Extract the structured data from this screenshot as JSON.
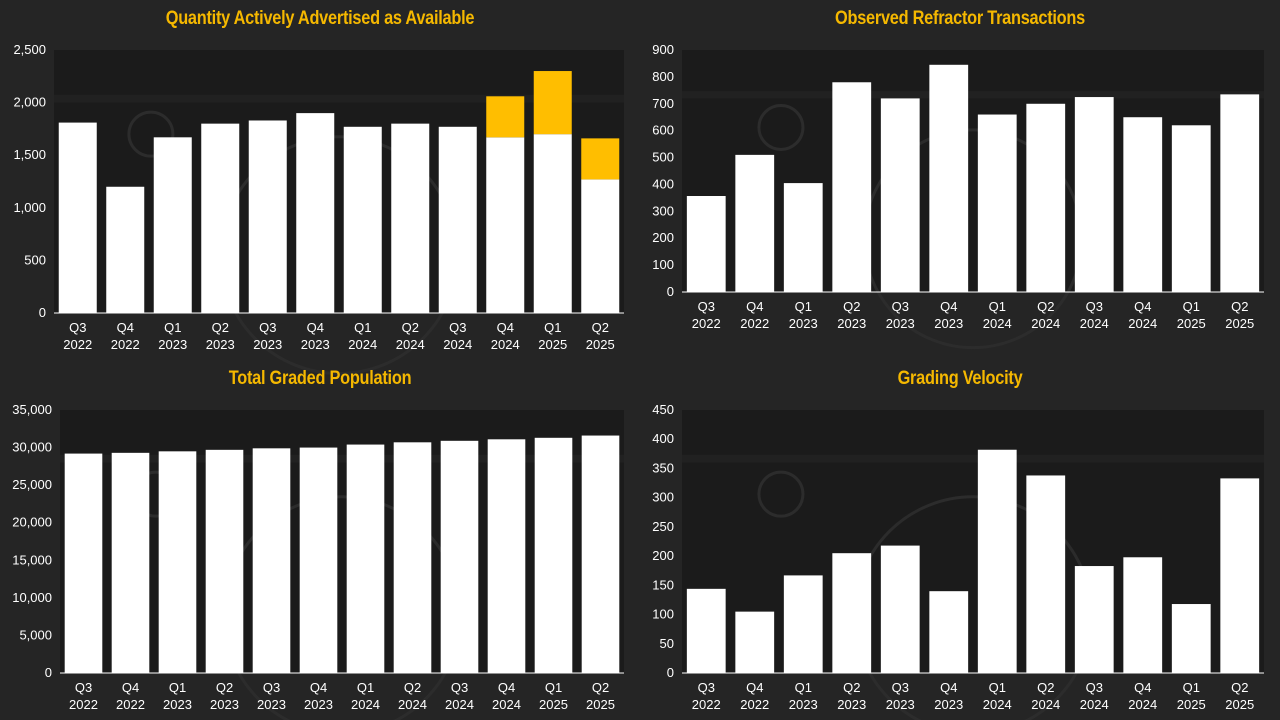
{
  "chart_data": [
    {
      "type": "bar",
      "stacked": true,
      "title": "Quantity Actively Advertised as Available",
      "categories": [
        [
          "Q3",
          "2022"
        ],
        [
          "Q4",
          "2022"
        ],
        [
          "Q1",
          "2023"
        ],
        [
          "Q2",
          "2023"
        ],
        [
          "Q3",
          "2023"
        ],
        [
          "Q4",
          "2023"
        ],
        [
          "Q1",
          "2024"
        ],
        [
          "Q2",
          "2024"
        ],
        [
          "Q3",
          "2024"
        ],
        [
          "Q4",
          "2024"
        ],
        [
          "Q1",
          "2025"
        ],
        [
          "Q2",
          "2025"
        ]
      ],
      "series": [
        {
          "color": "#ffffff",
          "values": [
            1810,
            1200,
            1670,
            1800,
            1830,
            1900,
            1770,
            1800,
            1770,
            1670,
            1700,
            1270
          ]
        },
        {
          "color": "#ffbe00",
          "values": [
            0,
            0,
            0,
            0,
            0,
            0,
            0,
            0,
            0,
            390,
            600,
            390
          ]
        }
      ],
      "ylim": [
        0,
        2500
      ],
      "yticks": [
        "0",
        "500",
        "1,000",
        "1,500",
        "2,000",
        "2,500"
      ],
      "ytick_values": [
        0,
        500,
        1000,
        1500,
        2000,
        2500
      ],
      "grid": false
    },
    {
      "type": "bar",
      "title": "Observed Refractor Transactions",
      "categories": [
        [
          "Q3",
          "2022"
        ],
        [
          "Q4",
          "2022"
        ],
        [
          "Q1",
          "2023"
        ],
        [
          "Q2",
          "2023"
        ],
        [
          "Q3",
          "2023"
        ],
        [
          "Q4",
          "2023"
        ],
        [
          "Q1",
          "2024"
        ],
        [
          "Q2",
          "2024"
        ],
        [
          "Q3",
          "2024"
        ],
        [
          "Q4",
          "2024"
        ],
        [
          "Q1",
          "2025"
        ],
        [
          "Q2",
          "2025"
        ]
      ],
      "series": [
        {
          "color": "#ffffff",
          "values": [
            357,
            510,
            405,
            780,
            720,
            845,
            660,
            700,
            725,
            650,
            620,
            735
          ]
        }
      ],
      "ylim": [
        0,
        900
      ],
      "yticks": [
        "0",
        "100",
        "200",
        "300",
        "400",
        "500",
        "600",
        "700",
        "800",
        "900"
      ],
      "ytick_values": [
        0,
        100,
        200,
        300,
        400,
        500,
        600,
        700,
        800,
        900
      ],
      "grid": false
    },
    {
      "type": "bar",
      "title": "Total Graded Population",
      "categories": [
        [
          "Q3",
          "2022"
        ],
        [
          "Q4",
          "2022"
        ],
        [
          "Q1",
          "2023"
        ],
        [
          "Q2",
          "2023"
        ],
        [
          "Q3",
          "2023"
        ],
        [
          "Q4",
          "2023"
        ],
        [
          "Q1",
          "2024"
        ],
        [
          "Q2",
          "2024"
        ],
        [
          "Q3",
          "2024"
        ],
        [
          "Q4",
          "2024"
        ],
        [
          "Q1",
          "2025"
        ],
        [
          "Q2",
          "2025"
        ]
      ],
      "series": [
        {
          "color": "#ffffff",
          "values": [
            29200,
            29300,
            29500,
            29700,
            29900,
            30000,
            30400,
            30700,
            30900,
            31100,
            31300,
            31600
          ]
        }
      ],
      "ylim": [
        0,
        35000
      ],
      "yticks": [
        "0",
        "5,000",
        "10,000",
        "15,000",
        "20,000",
        "25,000",
        "30,000",
        "35,000"
      ],
      "ytick_values": [
        0,
        5000,
        10000,
        15000,
        20000,
        25000,
        30000,
        35000
      ],
      "grid": false
    },
    {
      "type": "bar",
      "title": "Grading Velocity",
      "categories": [
        [
          "Q3",
          "2022"
        ],
        [
          "Q4",
          "2022"
        ],
        [
          "Q1",
          "2023"
        ],
        [
          "Q2",
          "2023"
        ],
        [
          "Q3",
          "2023"
        ],
        [
          "Q4",
          "2023"
        ],
        [
          "Q1",
          "2024"
        ],
        [
          "Q2",
          "2024"
        ],
        [
          "Q3",
          "2024"
        ],
        [
          "Q4",
          "2024"
        ],
        [
          "Q1",
          "2025"
        ],
        [
          "Q2",
          "2025"
        ]
      ],
      "series": [
        {
          "color": "#ffffff",
          "values": [
            144,
            105,
            167,
            205,
            218,
            140,
            382,
            338,
            183,
            198,
            118,
            333
          ]
        }
      ],
      "ylim": [
        0,
        450
      ],
      "yticks": [
        "0",
        "50",
        "100",
        "150",
        "200",
        "250",
        "300",
        "350",
        "400",
        "450"
      ],
      "ytick_values": [
        0,
        50,
        100,
        150,
        200,
        250,
        300,
        350,
        400,
        450
      ],
      "grid": false
    }
  ]
}
